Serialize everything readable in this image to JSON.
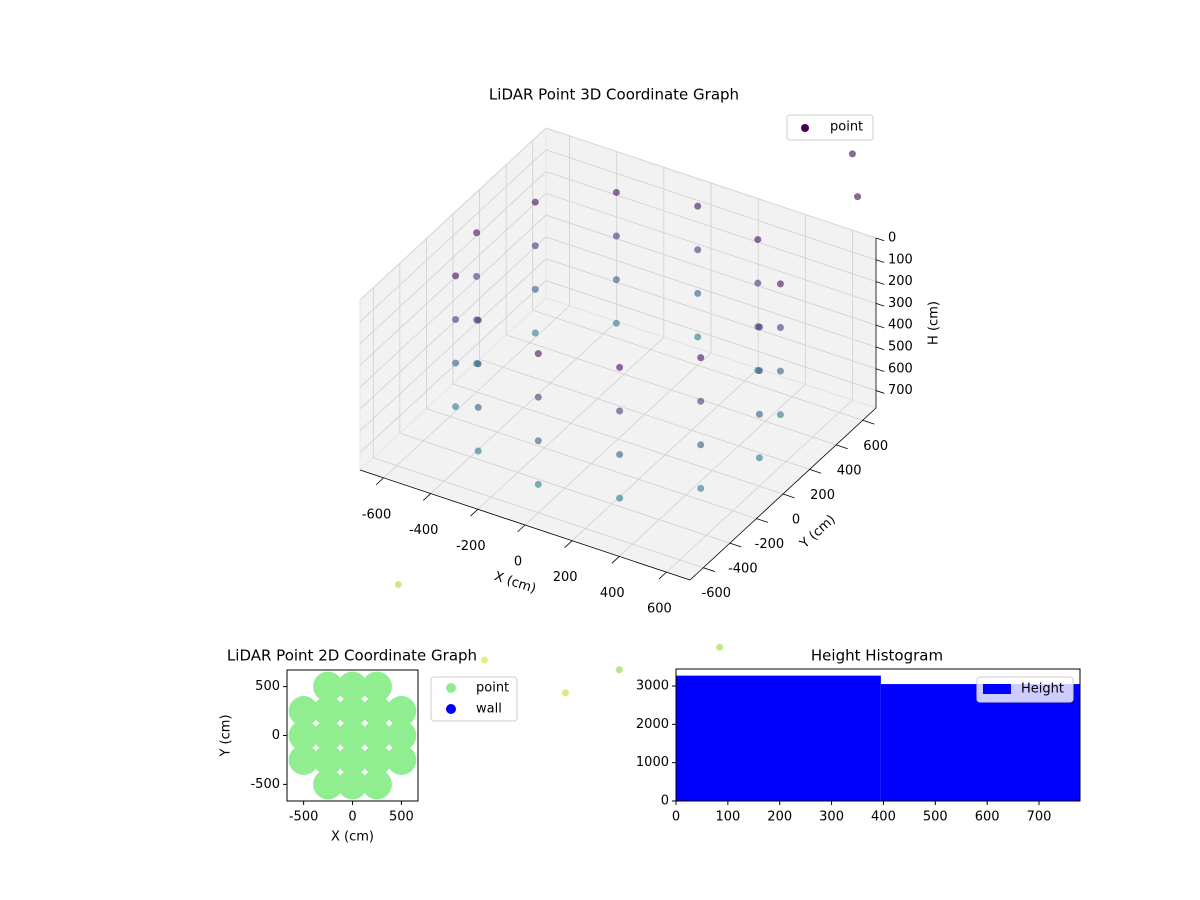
{
  "chart_data": [
    {
      "type": "scatter3d",
      "title": "LiDAR Point 3D Coordinate Graph",
      "xlabel": "X (cm)",
      "ylabel": "Y (cm)",
      "zlabel": "H (cm)",
      "xlim": [
        -700,
        700
      ],
      "ylim": [
        -700,
        700
      ],
      "zlim": [
        780,
        0
      ],
      "xticks": [
        -600,
        -400,
        -200,
        0,
        200,
        400,
        600
      ],
      "yticks": [
        -600,
        -400,
        -200,
        0,
        200,
        400,
        600
      ],
      "zticks": [
        0,
        100,
        200,
        300,
        400,
        500,
        600,
        700
      ],
      "grid": true,
      "legend": "upper right",
      "series": [
        {
          "name": "point",
          "color": "#440154",
          "colormap": "viridis",
          "clim": [
            0,
            1600
          ],
          "x": [
            600,
            520,
            300,
            0,
            -300,
            -520,
            -600,
            -520,
            -300,
            0,
            300,
            520,
            600,
            520,
            300,
            0,
            -300,
            -520,
            -600,
            -520,
            -300,
            0,
            300,
            520,
            600,
            520,
            300,
            0,
            -300,
            -520,
            -600,
            -520,
            -300,
            0,
            300,
            520,
            600,
            520,
            300,
            0,
            -300,
            -520,
            -600,
            -520,
            -300,
            0,
            300,
            520,
            -650,
            400,
            -200,
            600,
            200,
            650,
            600
          ],
          "y": [
            0,
            300,
            520,
            600,
            520,
            300,
            0,
            -300,
            -520,
            -600,
            -520,
            -300,
            0,
            300,
            520,
            600,
            520,
            300,
            0,
            -300,
            -520,
            -600,
            -520,
            -300,
            0,
            300,
            520,
            600,
            520,
            300,
            0,
            -300,
            -520,
            -600,
            -520,
            -300,
            0,
            300,
            520,
            600,
            520,
            300,
            0,
            -300,
            -520,
            -600,
            -520,
            -300,
            -500,
            -700,
            -650,
            -300,
            -750,
            650,
            700
          ],
          "z": [
            50,
            50,
            50,
            50,
            50,
            50,
            50,
            50,
            50,
            50,
            50,
            50,
            250,
            250,
            250,
            250,
            250,
            250,
            250,
            250,
            250,
            250,
            250,
            250,
            450,
            450,
            450,
            450,
            450,
            450,
            450,
            450,
            450,
            450,
            450,
            450,
            650,
            650,
            650,
            650,
            650,
            650,
            650,
            650,
            650,
            650,
            650,
            650,
            1400,
            1300,
            1500,
            1350,
            1450,
            -200,
            -350
          ]
        }
      ]
    },
    {
      "type": "scatter",
      "title": "LiDAR Point 2D Coordinate Graph",
      "xlabel": "X (cm)",
      "ylabel": "Y (cm)",
      "xlim": [
        -670,
        670
      ],
      "ylim": [
        -670,
        670
      ],
      "xticks": [
        -500,
        0,
        500
      ],
      "yticks": [
        -500,
        0,
        500
      ],
      "legend": "outside right",
      "series": [
        {
          "name": "point",
          "color": "#90ee90",
          "x": [
            -500,
            -500,
            -500,
            -250,
            -250,
            -250,
            -250,
            -250,
            0,
            0,
            0,
            0,
            0,
            250,
            250,
            250,
            250,
            250,
            500,
            500,
            500
          ],
          "y": [
            -250,
            0,
            250,
            -500,
            -250,
            0,
            250,
            500,
            -500,
            -250,
            0,
            250,
            500,
            -500,
            -250,
            0,
            250,
            500,
            -250,
            0,
            250
          ]
        },
        {
          "name": "wall",
          "color": "#0000ff",
          "x": [],
          "y": []
        }
      ]
    },
    {
      "type": "histogram",
      "title": "Height Histogram",
      "name": "Height",
      "color": "#0000ff",
      "bins": [
        0,
        395,
        779
      ],
      "counts": [
        3270,
        3050
      ],
      "xlim": [
        0,
        779
      ],
      "ylim": [
        0,
        3443
      ],
      "xticks": [
        0,
        100,
        200,
        300,
        400,
        500,
        600,
        700
      ],
      "yticks": [
        0,
        1000,
        2000,
        3000
      ],
      "legend": "upper right"
    }
  ]
}
